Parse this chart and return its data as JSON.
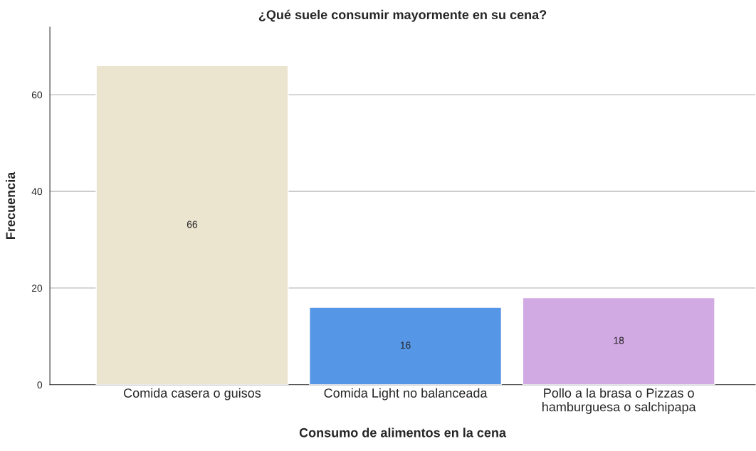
{
  "chart_data": {
    "type": "bar",
    "title": "¿Qué suele consumir mayormente en su cena?",
    "xlabel": "Consumo de alimentos en la cena",
    "ylabel": "Frecuencia",
    "categories": [
      "Comida casera o guisos",
      "Comida Light no balanceada",
      "Pollo a la brasa o Pizzas o\nhamburguesa o salchipapa"
    ],
    "values": [
      66,
      16,
      18
    ],
    "colors": [
      "#ebe4cf",
      "#5596e6",
      "#d1a9e3"
    ],
    "ylim": [
      0,
      74
    ],
    "yticks": [
      0,
      20,
      40,
      60
    ],
    "grid": "y",
    "data_labels": true
  }
}
